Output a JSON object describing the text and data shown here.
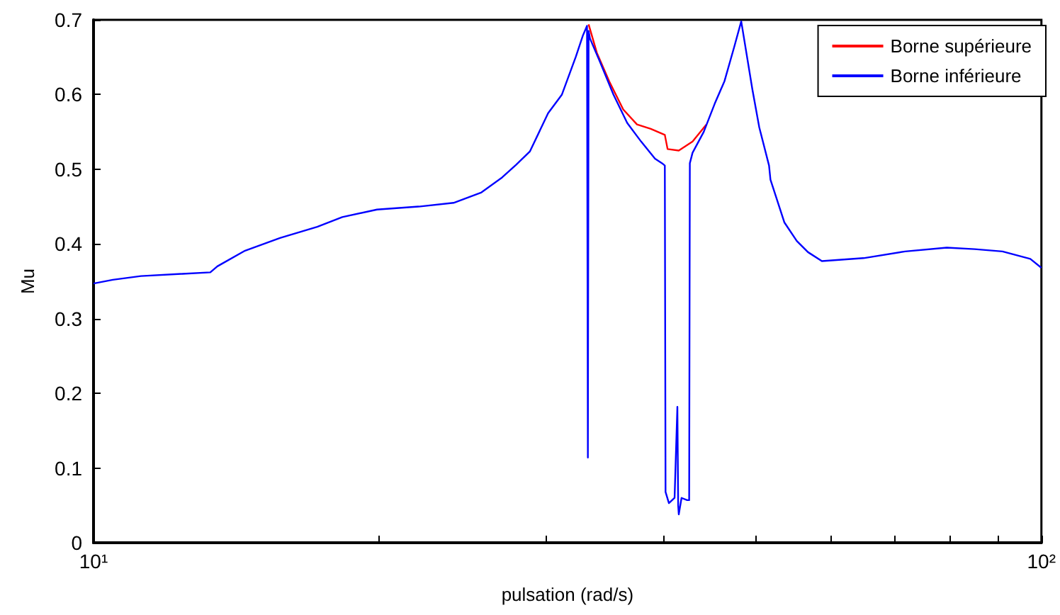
{
  "chart_data": {
    "type": "line",
    "xlabel": "pulsation (rad/s)",
    "ylabel": "Mu",
    "log": "x",
    "grid": false,
    "legend": "top right",
    "marker": "none",
    "line_style": "solid",
    "xlim": [
      10,
      100
    ],
    "xticks": [
      {
        "value": 10,
        "label": "10¹"
      },
      {
        "value": 20,
        "label": null
      },
      {
        "value": 30,
        "label": null
      },
      {
        "value": 40,
        "label": null
      },
      {
        "value": 50,
        "label": null
      },
      {
        "value": 60,
        "label": null
      },
      {
        "value": 70,
        "label": null
      },
      {
        "value": 80,
        "label": null
      },
      {
        "value": 90,
        "label": null
      },
      {
        "value": 100,
        "label": "10²"
      }
    ],
    "ylim": [
      0,
      0.7
    ],
    "yticks": [
      0,
      0.1,
      0.2,
      0.3,
      0.4,
      0.5,
      0.6,
      0.7
    ],
    "series": [
      {
        "name": "Borne supérieure",
        "color": "#ff0000",
        "x": [
          33.29,
          33.96,
          34.99,
          36.21,
          37.44,
          38.72,
          40.06,
          40.33,
          41.44,
          42.85,
          44.33
        ],
        "values": [
          0.694,
          0.656,
          0.618,
          0.58,
          0.56,
          0.554,
          0.546,
          0.527,
          0.525,
          0.537,
          0.56
        ]
      },
      {
        "name": "Borne inférieure",
        "color": "#0000ff",
        "x": [
          10.0,
          10.48,
          11.22,
          12.41,
          13.28,
          13.51,
          14.45,
          15.73,
          17.22,
          18.3,
          19.91,
          22.03,
          23.98,
          25.66,
          26.98,
          27.91,
          28.87,
          30.17,
          31.2,
          32.28,
          32.83,
          33.16,
          33.23,
          33.29,
          33.4,
          34.19,
          35.36,
          36.56,
          37.82,
          39.12,
          39.79,
          40.06,
          40.13,
          40.46,
          41.02,
          41.3,
          41.38,
          41.44,
          41.72,
          42.29,
          42.5,
          42.57,
          42.85,
          44.03,
          45.23,
          46.31,
          47.42,
          48.23,
          49.55,
          50.39,
          51.6,
          51.78,
          53.55,
          55.2,
          56.72,
          58.67,
          64.92,
          71.82,
          79.47,
          85.04,
          90.97,
          97.34,
          100
        ],
        "values": [
          0.347,
          0.352,
          0.357,
          0.36,
          0.362,
          0.37,
          0.391,
          0.408,
          0.423,
          0.436,
          0.446,
          0.45,
          0.455,
          0.469,
          0.489,
          0.506,
          0.524,
          0.575,
          0.6,
          0.651,
          0.679,
          0.692,
          0.114,
          0.685,
          0.675,
          0.645,
          0.6,
          0.562,
          0.537,
          0.514,
          0.508,
          0.505,
          0.068,
          0.053,
          0.06,
          0.182,
          0.05,
          0.038,
          0.06,
          0.057,
          0.057,
          0.508,
          0.522,
          0.55,
          0.588,
          0.618,
          0.664,
          0.698,
          0.607,
          0.556,
          0.505,
          0.486,
          0.429,
          0.404,
          0.389,
          0.377,
          0.381,
          0.39,
          0.395,
          0.393,
          0.39,
          0.38,
          0.368
        ]
      }
    ]
  }
}
